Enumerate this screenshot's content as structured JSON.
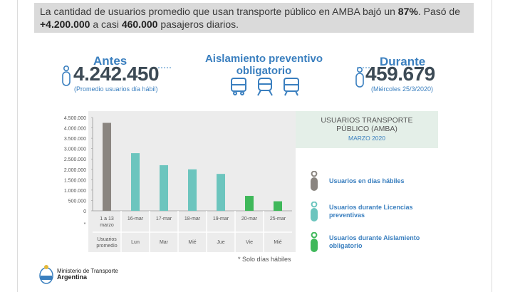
{
  "headline": {
    "t1": "La cantidad de usuarios promedio que usan transporte público en AMBA bajó un ",
    "t2": "87%",
    "t3": ". Pasó de ",
    "t4": "+4.200.000",
    "t5": " a casi ",
    "t6": "460.000",
    "t7": " pasajeros diarios."
  },
  "before": {
    "label": "Antes",
    "value": "4.242.450",
    "caption": "(Promedio usuarios día hábil)"
  },
  "isolation_title": "Aislamiento preventivo obligatorio",
  "during": {
    "label": "Durante",
    "value": "459.679",
    "caption": "(Miércoles 25/3/2020)"
  },
  "icons": [
    "person-icon",
    "bus-icon",
    "train-icon",
    "subway-icon",
    "person-icon"
  ],
  "colors": {
    "accent": "#3a7fbf",
    "bar_habiles": "#8a8580",
    "bar_licencias": "#6cc5be",
    "bar_aislamiento": "#3fb85a"
  },
  "chart_data": {
    "type": "bar",
    "title_line1": "USUARIOS TRANSPORTE",
    "title_line2": "PÚBLICO (AMBA)",
    "subtitle": "MARZO 2020",
    "footnote": "* Solo días hábiles",
    "ylim": [
      0,
      4500000
    ],
    "yticks": [
      "4.500.000",
      "4.000.000",
      "3.500.000",
      "3.000.000",
      "2.500.000",
      "2.000.000",
      "1.500.000",
      "1.000.000",
      "500.000",
      "0"
    ],
    "ytick_values": [
      4500000,
      4000000,
      3500000,
      3000000,
      2500000,
      2000000,
      1500000,
      1000000,
      500000,
      0
    ],
    "categories": [
      {
        "date": "1 a 13 marzo",
        "day": "Usuarios promedio",
        "star": "*"
      },
      {
        "date": "16-mar",
        "day": "Lun",
        "star": ""
      },
      {
        "date": "17-mar",
        "day": "Mar",
        "star": ""
      },
      {
        "date": "18-mar",
        "day": "Mié",
        "star": ""
      },
      {
        "date": "19-mar",
        "day": "Jue",
        "star": ""
      },
      {
        "date": "20-mar",
        "day": "Vie",
        "star": ""
      },
      {
        "date": "25-mar",
        "day": "Mié",
        "star": ""
      }
    ],
    "values": [
      4242450,
      2780000,
      2200000,
      2000000,
      1780000,
      720000,
      459679
    ],
    "bar_group": [
      0,
      1,
      1,
      1,
      1,
      2,
      2
    ],
    "legend": [
      {
        "label": "Usuarios en días hábiles",
        "color": "#8a8580"
      },
      {
        "label": "Usuarios durante Licencias preventivas",
        "color": "#6cc5be"
      },
      {
        "label": "Usuarios durante Aislamiento obligatorio",
        "color": "#3fb85a"
      }
    ],
    "grid": false,
    "legend_position": "right"
  },
  "footer": {
    "ministry": "Ministerio de Transporte",
    "country": "Argentina"
  }
}
